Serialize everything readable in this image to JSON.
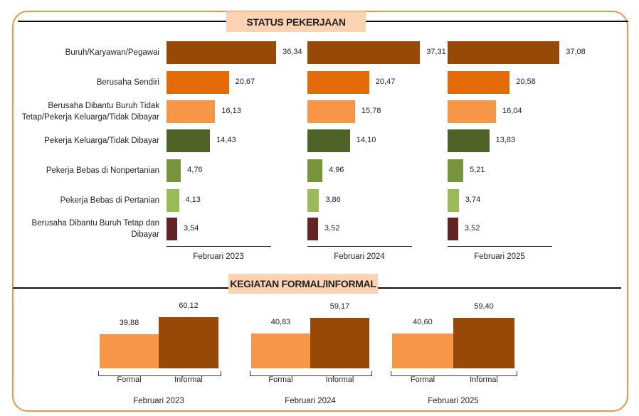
{
  "colors": {
    "border": "#f0944a",
    "title_bg": "#fbd3b3"
  },
  "chart_data": [
    {
      "type": "bar",
      "orientation": "horizontal",
      "title": "STATUS PEKERJAAN",
      "categories": [
        "Buruh/Karyawan/Pegawai",
        "Berusaha Sendiri",
        "Berusaha Dibantu Buruh Tidak Tetap/Pekerja Keluarga/Tidak Dibayar",
        "Pekerja Keluarga/Tidak Dibayar",
        "Pekerja Bebas di Nonpertanian",
        "Pekerja Bebas di Pertanian",
        "Berusaha Dibantu Buruh Tetap dan Dibayar"
      ],
      "category_colors": [
        "#984807",
        "#e36c09",
        "#f79646",
        "#4f6228",
        "#77933c",
        "#9bbb59",
        "#632523"
      ],
      "panels": [
        {
          "label": "Februari 2023",
          "values": [
            36.34,
            20.67,
            16.13,
            14.43,
            4.76,
            4.13,
            3.54
          ],
          "labels": [
            "36,34",
            "20,67",
            "16,13",
            "14,43",
            "4,76",
            "4,13",
            "3,54"
          ]
        },
        {
          "label": "Februari 2024",
          "values": [
            37.31,
            20.47,
            15.78,
            14.1,
            4.96,
            3.86,
            3.52
          ],
          "labels": [
            "37,31",
            "20,47",
            "15,78",
            "14,10",
            "4,96",
            "3,86",
            "3,52"
          ]
        },
        {
          "label": "Februari 2025",
          "values": [
            37.08,
            20.58,
            16.04,
            13.83,
            5.21,
            3.74,
            3.52
          ],
          "labels": [
            "37,08",
            "20,58",
            "16,04",
            "13,83",
            "5,21",
            "3,74",
            "3,52"
          ]
        }
      ]
    },
    {
      "type": "bar",
      "title": "KEGIATAN FORMAL/INFORMAL",
      "categories": [
        "Formal",
        "Informal"
      ],
      "category_colors": [
        "#f79646",
        "#984807"
      ],
      "panels": [
        {
          "label": "Februari 2023",
          "values": [
            39.88,
            60.12
          ],
          "labels": [
            "39,88",
            "60,12"
          ]
        },
        {
          "label": "Februari 2024",
          "values": [
            40.83,
            59.17
          ],
          "labels": [
            "40,83",
            "59,17"
          ]
        },
        {
          "label": "Februari 2025",
          "values": [
            40.6,
            59.4
          ],
          "labels": [
            "40,60",
            "59,40"
          ]
        }
      ]
    }
  ]
}
